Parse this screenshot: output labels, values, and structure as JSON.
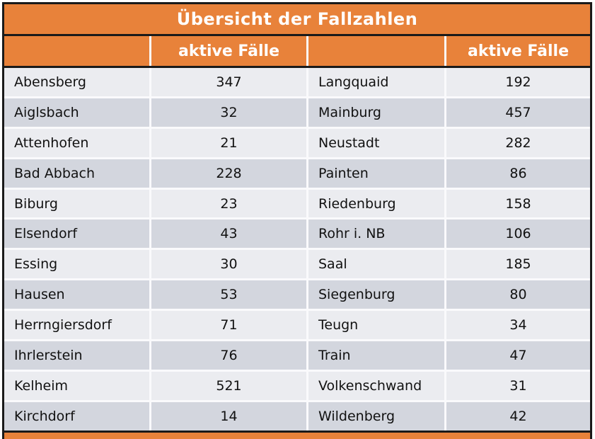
{
  "title": "Übersicht der Fallzahlen",
  "header": {
    "empty_left": "",
    "cases_label": "aktive Fälle",
    "empty_right": "",
    "cases_label_2": "aktive Fälle"
  },
  "colors": {
    "accent": "#E8823A",
    "border": "#1A1A1A",
    "row_light": "#EBECF0",
    "row_dark": "#D3D6DE",
    "grid_line": "#FAFAFC",
    "header_text": "#FFFFFF",
    "text": "#111111"
  },
  "chart_data": {
    "type": "table",
    "title": "Übersicht der Fallzahlen",
    "value_column_label": "aktive Fälle",
    "layout": "two column-pairs, 12 rows, left pair holds entries 1-12, right pair entries 13-24",
    "entries": [
      {
        "name": "Abensberg",
        "value": 347
      },
      {
        "name": "Aiglsbach",
        "value": 32
      },
      {
        "name": "Attenhofen",
        "value": 21
      },
      {
        "name": "Bad Abbach",
        "value": 228
      },
      {
        "name": "Biburg",
        "value": 23
      },
      {
        "name": "Elsendorf",
        "value": 43
      },
      {
        "name": "Essing",
        "value": 30
      },
      {
        "name": "Hausen",
        "value": 53
      },
      {
        "name": "Herrngiersdorf",
        "value": 71
      },
      {
        "name": "Ihrlerstein",
        "value": 76
      },
      {
        "name": "Kelheim",
        "value": 521
      },
      {
        "name": "Kirchdorf",
        "value": 14
      },
      {
        "name": "Langquaid",
        "value": 192
      },
      {
        "name": "Mainburg",
        "value": 457
      },
      {
        "name": "Neustadt",
        "value": 282
      },
      {
        "name": "Painten",
        "value": 86
      },
      {
        "name": "Riedenburg",
        "value": 158
      },
      {
        "name": "Rohr i. NB",
        "value": 106
      },
      {
        "name": "Saal",
        "value": 185
      },
      {
        "name": "Siegenburg",
        "value": 80
      },
      {
        "name": "Teugn",
        "value": 34
      },
      {
        "name": "Train",
        "value": 47
      },
      {
        "name": "Volkenschwand",
        "value": 31
      },
      {
        "name": "Wildenberg",
        "value": 42
      }
    ]
  }
}
